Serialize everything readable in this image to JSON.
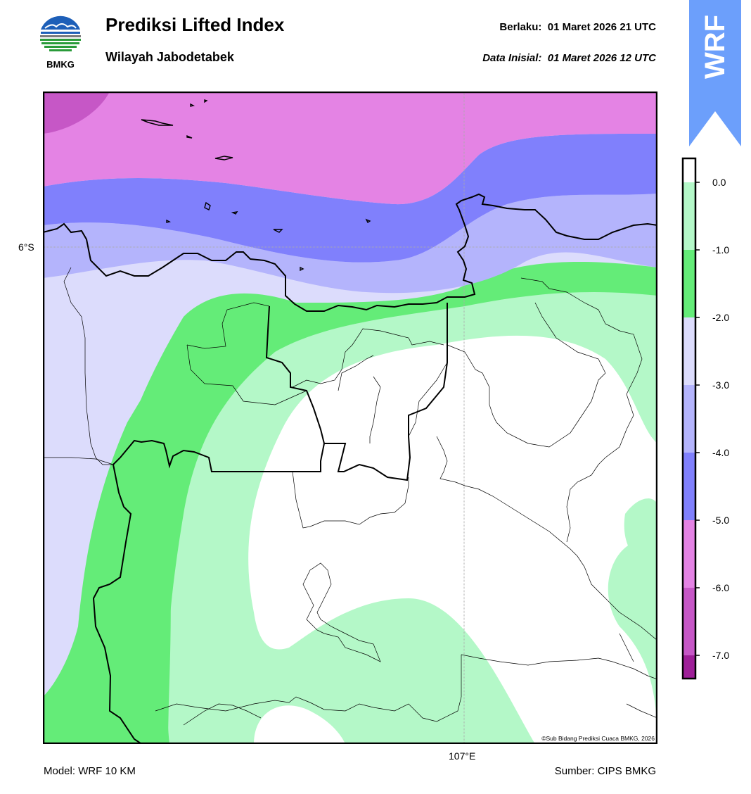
{
  "header": {
    "logo_text": "BMKG",
    "title": "Prediksi Lifted Index",
    "subtitle": "Wilayah Jabodetabek",
    "valid_label": "Berlaku:  01 Maret 2026 21 UTC",
    "init_label": "Data Inisial:  01 Maret 2026 12 UTC",
    "banner_text": "WRF",
    "banner_color": "#6c9ffb"
  },
  "map": {
    "lat_label": "6°S",
    "lon_label": "107°E",
    "credit": "©Sub Bidang Prediksi Cuaca BMKG, 2026",
    "region_fill_colors": {
      "le_-7": "#9e1f98",
      "-7_-6": "#c657c6",
      "-6_-5": "#e483e4",
      "-5_-4": "#8080fc",
      "-4_-3": "#b4b4fc",
      "-3_-2": "#dcdcfc",
      "-2_-1": "#64ec78",
      "-1_0": "#b4f8c8",
      "ge_0": "#ffffff"
    }
  },
  "footer": {
    "model": "Model: WRF 10 KM",
    "source": "Sumber: CIPS BMKG"
  },
  "colorbar": {
    "ticks": [
      "0.0",
      "-1.0",
      "-2.0",
      "-3.0",
      "-4.0",
      "-5.0",
      "-6.0",
      "-7.0"
    ],
    "colors": [
      "#ffffff",
      "#b4f8c8",
      "#64ec78",
      "#dcdcfc",
      "#b4b4fc",
      "#8080fc",
      "#e483e4",
      "#c657c6",
      "#9e1f98"
    ]
  }
}
